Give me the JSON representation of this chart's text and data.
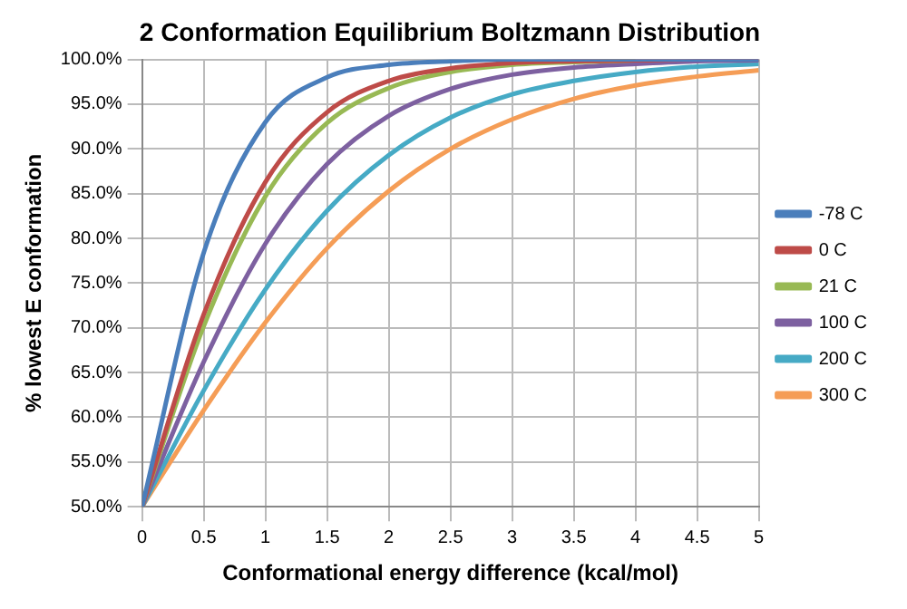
{
  "chart_data": {
    "type": "line",
    "title": "2 Conformation Equilibrium Boltzmann Distribution",
    "xlabel": "Conformational energy difference (kcal/mol)",
    "ylabel": "% lowest E conformation",
    "x": [
      0,
      0.5,
      1,
      1.5,
      2,
      2.5,
      3,
      3.5,
      4,
      4.5,
      5
    ],
    "series": [
      {
        "name": "-78 C",
        "color": "#4a7ebb",
        "values": [
          50,
          78.4,
          93.0,
          98.0,
          99.4,
          99.8,
          100.0,
          100.0,
          100.0,
          100.0,
          100.0
        ]
      },
      {
        "name": "0 C",
        "color": "#be4b48",
        "values": [
          50,
          71.5,
          86.3,
          94.1,
          97.6,
          99.0,
          99.6,
          99.8,
          99.9,
          100.0,
          100.0
        ]
      },
      {
        "name": "21 C",
        "color": "#98b954",
        "values": [
          50,
          70.2,
          84.7,
          92.9,
          96.8,
          98.6,
          99.4,
          99.7,
          99.9,
          null,
          null
        ]
      },
      {
        "name": "100 C",
        "color": "#7d60a0",
        "values": [
          50,
          66.2,
          79.4,
          88.3,
          93.7,
          96.7,
          98.3,
          99.1,
          99.5,
          99.8,
          99.9
        ]
      },
      {
        "name": "200 C",
        "color": "#46aac5",
        "values": [
          50,
          63.0,
          74.3,
          83.1,
          89.3,
          93.5,
          96.1,
          97.6,
          98.6,
          99.2,
          99.5
        ]
      },
      {
        "name": "300 C",
        "color": "#f59d56",
        "values": [
          50,
          60.8,
          70.6,
          78.9,
          85.3,
          90.0,
          93.3,
          95.6,
          97.1,
          98.1,
          98.8
        ]
      }
    ],
    "xlim": [
      0,
      5
    ],
    "xticks": [
      0,
      0.5,
      1,
      1.5,
      2,
      2.5,
      3,
      3.5,
      4,
      4.5,
      5
    ],
    "ylim": [
      50,
      100
    ],
    "yticks": [
      {
        "value": 50,
        "label": "50.0%"
      },
      {
        "value": 55,
        "label": "55.0%"
      },
      {
        "value": 60,
        "label": "60.0%"
      },
      {
        "value": 65,
        "label": "65.0%"
      },
      {
        "value": 70,
        "label": "70.0%"
      },
      {
        "value": 75,
        "label": "75.0%"
      },
      {
        "value": 80,
        "label": "80.0%"
      },
      {
        "value": 85,
        "label": "85.0%"
      },
      {
        "value": 90,
        "label": "90.0%"
      },
      {
        "value": 95,
        "label": "95.0%"
      },
      {
        "value": 100,
        "label": "100.0%"
      }
    ],
    "grid": true,
    "legend": "right",
    "marker": "none",
    "line_style": "solid"
  }
}
